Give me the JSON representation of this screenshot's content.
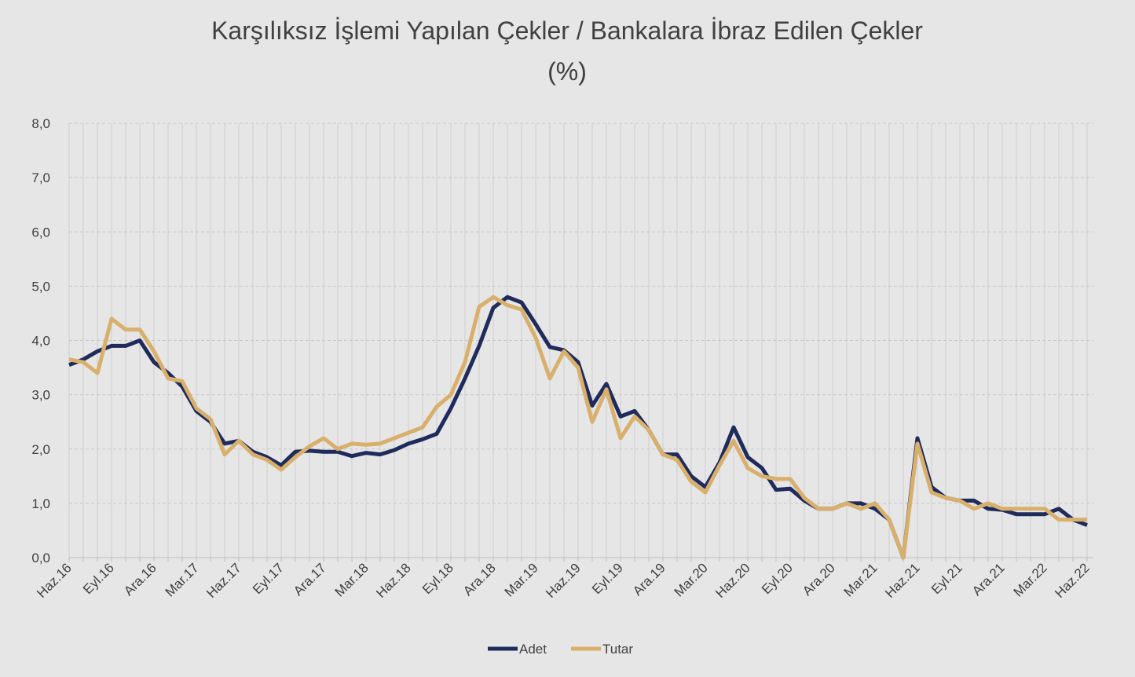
{
  "chart_data": {
    "type": "line",
    "title": "Karşılıksız İşlemi Yapılan Çekler / Bankalara İbraz Edilen Çekler",
    "subtitle": "(%)",
    "categories": [
      "Haz.16",
      null,
      null,
      "Eyl.16",
      null,
      null,
      "Ara.16",
      null,
      null,
      "Mar.17",
      null,
      null,
      "Haz.17",
      null,
      null,
      "Eyl.17",
      null,
      null,
      "Ara.17",
      null,
      null,
      "Mar.18",
      null,
      null,
      "Haz.18",
      null,
      null,
      "Eyl.18",
      null,
      null,
      "Ara.18",
      null,
      null,
      "Mar.19",
      null,
      null,
      "Haz.19",
      null,
      null,
      "Eyl.19",
      null,
      null,
      "Ara.19",
      null,
      null,
      "Mar.20",
      null,
      null,
      "Haz.20",
      null,
      null,
      "Eyl.20",
      null,
      null,
      "Ara.20",
      null,
      null,
      "Mar.21",
      null,
      null,
      "Haz.21",
      null,
      null,
      "Eyl.21",
      null,
      null,
      "Ara.21",
      null,
      null,
      "Mar.22",
      null,
      null,
      "Haz.22"
    ],
    "series": [
      {
        "name": "Adet",
        "color": "#1f2b5b",
        "values": [
          3.55,
          3.65,
          3.8,
          3.9,
          3.9,
          4.0,
          3.6,
          3.4,
          3.15,
          2.7,
          2.5,
          2.1,
          2.15,
          1.95,
          1.85,
          1.7,
          1.95,
          1.97,
          1.95,
          1.95,
          1.87,
          1.93,
          1.9,
          1.98,
          2.1,
          2.18,
          2.28,
          2.75,
          3.3,
          3.9,
          4.6,
          4.8,
          4.7,
          4.3,
          3.88,
          3.82,
          3.6,
          2.8,
          3.2,
          2.6,
          2.7,
          2.35,
          1.9,
          1.9,
          1.5,
          1.3,
          1.75,
          2.4,
          1.85,
          1.65,
          1.25,
          1.27,
          1.05,
          0.9,
          0.9,
          1.0,
          1.0,
          0.9,
          0.7,
          0.0,
          2.2,
          1.3,
          1.1,
          1.05,
          1.05,
          0.9,
          0.88,
          0.8,
          0.8,
          0.8,
          0.9,
          0.7,
          0.6
        ]
      },
      {
        "name": "Tutar",
        "color": "#d8b06c",
        "values": [
          3.65,
          3.6,
          3.4,
          4.4,
          4.2,
          4.2,
          3.8,
          3.3,
          3.25,
          2.75,
          2.55,
          1.9,
          2.15,
          1.9,
          1.8,
          1.62,
          1.85,
          2.05,
          2.2,
          2.0,
          2.1,
          2.08,
          2.1,
          2.2,
          2.3,
          2.4,
          2.78,
          3.0,
          3.6,
          4.62,
          4.8,
          4.65,
          4.57,
          4.05,
          3.3,
          3.8,
          3.5,
          2.5,
          3.1,
          2.2,
          2.6,
          2.35,
          1.9,
          1.8,
          1.4,
          1.2,
          1.7,
          2.15,
          1.65,
          1.5,
          1.45,
          1.45,
          1.1,
          0.9,
          0.9,
          1.0,
          0.9,
          1.0,
          0.7,
          0.0,
          2.1,
          1.2,
          1.1,
          1.05,
          0.9,
          1.0,
          0.9,
          0.9,
          0.9,
          0.9,
          0.7,
          0.7,
          0.7
        ]
      }
    ],
    "ylim": [
      0,
      8
    ],
    "yticks": [
      {
        "value": 0,
        "label": "0,0"
      },
      {
        "value": 1,
        "label": "1,0"
      },
      {
        "value": 2,
        "label": "2,0"
      },
      {
        "value": 3,
        "label": "3,0"
      },
      {
        "value": 4,
        "label": "4,0"
      },
      {
        "value": 5,
        "label": "5,0"
      },
      {
        "value": 6,
        "label": "6,0"
      },
      {
        "value": 7,
        "label": "7,0"
      },
      {
        "value": 8,
        "label": "8,0"
      }
    ],
    "grid": true,
    "legend": "bottom"
  }
}
